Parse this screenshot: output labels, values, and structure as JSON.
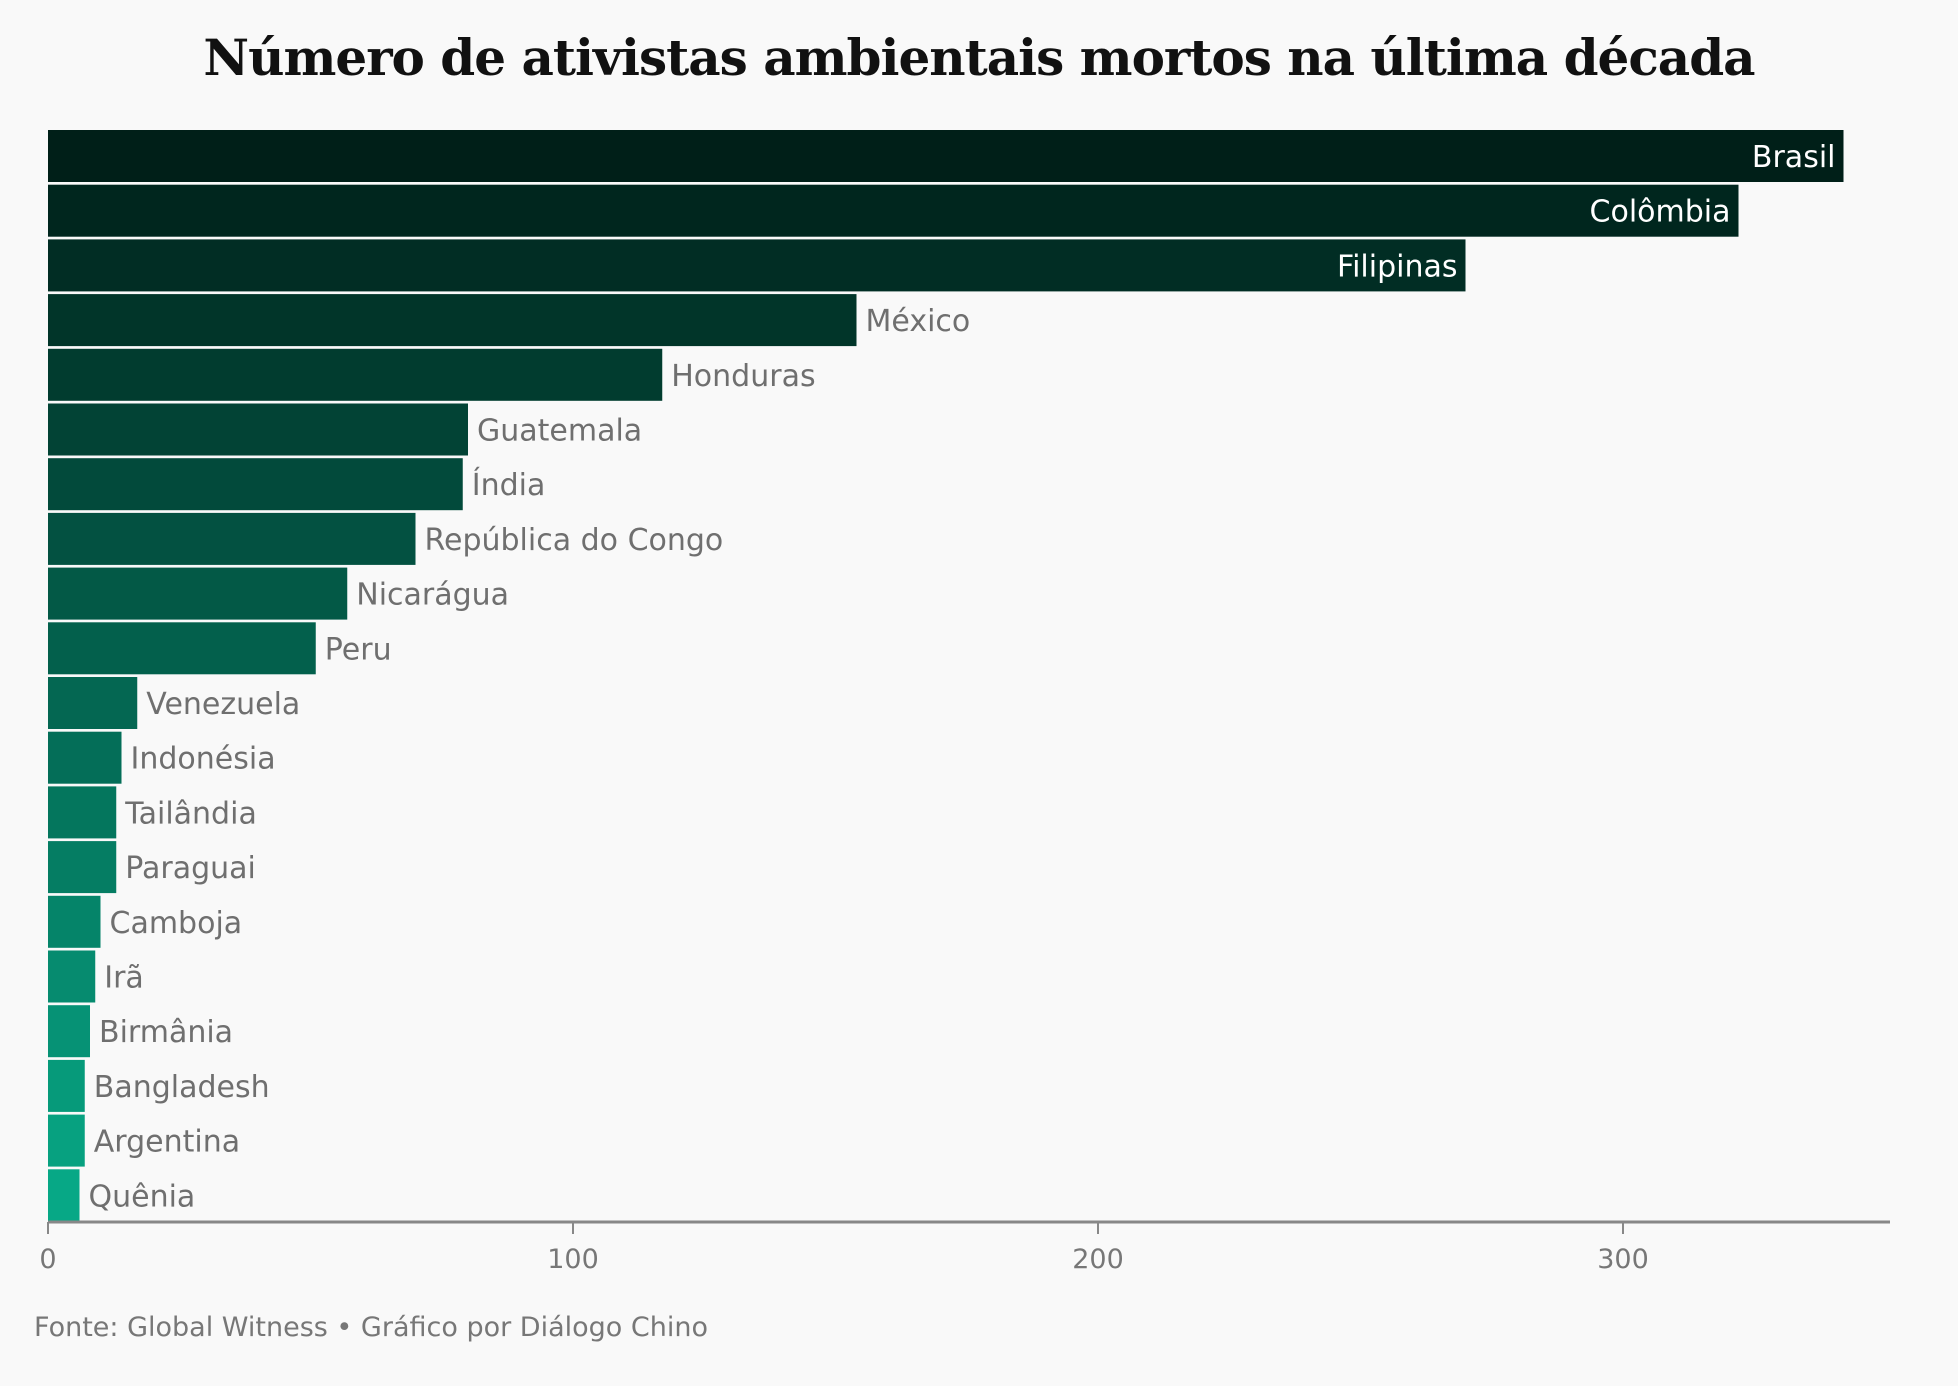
{
  "title": "Número de ativistas ambientais mortos na última década",
  "source": "Fonte: Global Witness • Gráfico por Diálogo Chino",
  "colors": {
    "dark": "#001f18",
    "light": "#07a886",
    "label_inside": "#ffffff",
    "label_outside": "#6f6f6f",
    "axis": "#888888"
  },
  "chart_data": {
    "type": "bar",
    "orientation": "horizontal",
    "categories": [
      "Brasil",
      "Colômbia",
      "Filipinas",
      "México",
      "Honduras",
      "Guatemala",
      "Índia",
      "República do Congo",
      "Nicarágua",
      "Peru",
      "Venezuela",
      "Indonésia",
      "Tailândia",
      "Paraguai",
      "Camboja",
      "Irã",
      "Birmânia",
      "Bangladesh",
      "Argentina",
      "Quênia"
    ],
    "values": [
      342,
      322,
      270,
      154,
      117,
      80,
      79,
      70,
      57,
      51,
      17,
      14,
      13,
      13,
      10,
      9,
      8,
      7,
      7,
      6
    ],
    "xlim": [
      0,
      352
    ],
    "xticks": [
      0,
      100,
      200,
      300
    ],
    "title": "Número de ativistas ambientais mortos na última década",
    "xlabel": "",
    "ylabel": "",
    "grid": false,
    "legend": "none"
  }
}
